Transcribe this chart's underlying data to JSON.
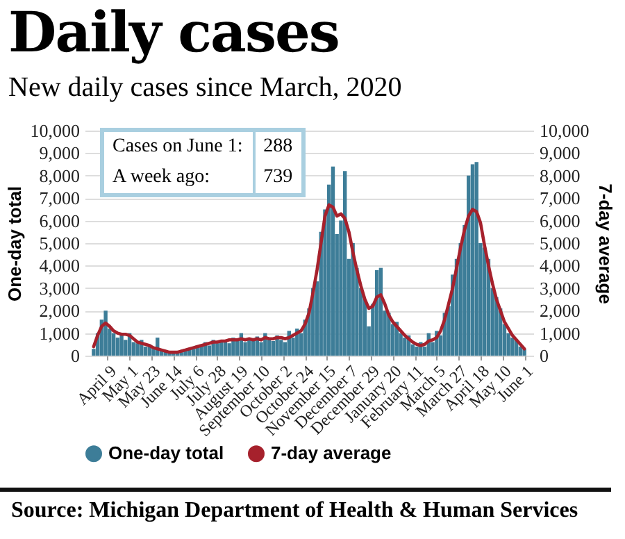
{
  "chart_data": {
    "type": "bar",
    "title": "Daily cases",
    "subtitle": "New daily cases since March, 2020",
    "ylabel": "One-day total",
    "y2label": "7-day average",
    "annotations": [
      "Cases on June 1:",
      "288",
      "A week ago:",
      "739",
      "Source:  Michigan Department of Health & Human Services"
    ],
    "x": [
      "2020-03-26",
      "2020-03-30",
      "2020-04-03",
      "2020-04-07",
      "2020-04-11",
      "2020-04-15",
      "2020-04-19",
      "2020-04-23",
      "2020-04-27",
      "2020-05-01",
      "2020-05-05",
      "2020-05-09",
      "2020-05-13",
      "2020-05-17",
      "2020-05-21",
      "2020-05-25",
      "2020-05-29",
      "2020-06-02",
      "2020-06-06",
      "2020-06-10",
      "2020-06-14",
      "2020-06-18",
      "2020-06-22",
      "2020-06-26",
      "2020-06-30",
      "2020-07-04",
      "2020-07-08",
      "2020-07-12",
      "2020-07-16",
      "2020-07-20",
      "2020-07-24",
      "2020-07-28",
      "2020-08-01",
      "2020-08-05",
      "2020-08-09",
      "2020-08-13",
      "2020-08-17",
      "2020-08-21",
      "2020-08-25",
      "2020-08-29",
      "2020-09-02",
      "2020-09-06",
      "2020-09-10",
      "2020-09-14",
      "2020-09-18",
      "2020-09-22",
      "2020-09-26",
      "2020-09-30",
      "2020-10-04",
      "2020-10-08",
      "2020-10-12",
      "2020-10-16",
      "2020-10-20",
      "2020-10-24",
      "2020-10-28",
      "2020-11-01",
      "2020-11-05",
      "2020-11-09",
      "2020-11-13",
      "2020-11-17",
      "2020-11-21",
      "2020-11-25",
      "2020-11-29",
      "2020-12-03",
      "2020-12-07",
      "2020-12-11",
      "2020-12-15",
      "2020-12-19",
      "2020-12-23",
      "2020-12-27",
      "2020-12-31",
      "2021-01-04",
      "2021-01-08",
      "2021-01-12",
      "2021-01-16",
      "2021-01-20",
      "2021-01-24",
      "2021-01-28",
      "2021-02-01",
      "2021-02-05",
      "2021-02-09",
      "2021-02-13",
      "2021-02-17",
      "2021-02-21",
      "2021-02-25",
      "2021-03-01",
      "2021-03-05",
      "2021-03-09",
      "2021-03-13",
      "2021-03-17",
      "2021-03-21",
      "2021-03-25",
      "2021-03-29",
      "2021-04-02",
      "2021-04-06",
      "2021-04-10",
      "2021-04-14",
      "2021-04-18",
      "2021-04-22",
      "2021-04-26",
      "2021-04-30",
      "2021-05-04",
      "2021-05-08",
      "2021-05-12",
      "2021-05-16",
      "2021-05-20",
      "2021-05-24",
      "2021-05-28",
      "2021-06-01"
    ],
    "series": [
      {
        "name": "One-day total",
        "color": "#3d7d98",
        "values": [
          300,
          1000,
          1600,
          2000,
          1200,
          1000,
          800,
          1000,
          700,
          1000,
          600,
          550,
          700,
          400,
          500,
          300,
          800,
          250,
          200,
          150,
          100,
          200,
          150,
          300,
          250,
          300,
          450,
          500,
          600,
          450,
          700,
          550,
          600,
          700,
          550,
          800,
          650,
          1000,
          600,
          800,
          650,
          850,
          600,
          1000,
          700,
          650,
          900,
          700,
          600,
          1100,
          800,
          1200,
          1000,
          1600,
          2100,
          3000,
          3300,
          5500,
          6500,
          7600,
          8400,
          5400,
          6000,
          8200,
          4300,
          5000,
          3900,
          3000,
          2500,
          1300,
          2300,
          3800,
          3900,
          2000,
          1900,
          1400,
          1500,
          1000,
          800,
          900,
          500,
          400,
          600,
          400,
          1000,
          600,
          1100,
          900,
          1900,
          2200,
          3600,
          4300,
          5000,
          5800,
          8000,
          8500,
          8600,
          5000,
          4800,
          4300,
          3000,
          2600,
          2100,
          1400,
          1000,
          800,
          700,
          400,
          288
        ]
      },
      {
        "name": "7-day average",
        "type": "line",
        "axis": "y2",
        "color": "#a6212c",
        "values": [
          400,
          900,
          1300,
          1450,
          1300,
          1100,
          1000,
          950,
          950,
          900,
          750,
          600,
          550,
          500,
          450,
          350,
          300,
          250,
          200,
          150,
          150,
          150,
          200,
          250,
          300,
          350,
          400,
          450,
          500,
          550,
          600,
          600,
          650,
          650,
          700,
          700,
          700,
          750,
          700,
          750,
          700,
          750,
          700,
          800,
          750,
          750,
          800,
          800,
          750,
          800,
          900,
          1000,
          1100,
          1400,
          1900,
          2800,
          3800,
          5000,
          6200,
          6700,
          6600,
          6200,
          6300,
          6100,
          5500,
          4600,
          3800,
          3100,
          2500,
          2100,
          2200,
          2600,
          2700,
          2300,
          1800,
          1500,
          1300,
          1100,
          900,
          750,
          600,
          500,
          450,
          500,
          650,
          700,
          800,
          1100,
          1600,
          2300,
          3000,
          3900,
          4800,
          5600,
          6200,
          6500,
          6400,
          5900,
          4900,
          4000,
          3200,
          2500,
          2000,
          1500,
          1200,
          900,
          700,
          500,
          300
        ]
      }
    ],
    "xlim": [
      "2020-03-24",
      "2021-06-03"
    ],
    "xticks": [
      {
        "value": "2020-04-09",
        "label": "April 9"
      },
      {
        "value": "2020-05-01",
        "label": "May 1"
      },
      {
        "value": "2020-05-23",
        "label": "May 23"
      },
      {
        "value": "2020-06-14",
        "label": "June 14"
      },
      {
        "value": "2020-07-06",
        "label": "July 6"
      },
      {
        "value": "2020-07-28",
        "label": "July 28"
      },
      {
        "value": "2020-08-19",
        "label": "August 19"
      },
      {
        "value": "2020-09-10",
        "label": "September 10"
      },
      {
        "value": "2020-10-02",
        "label": "October 2"
      },
      {
        "value": "2020-10-24",
        "label": "October 24"
      },
      {
        "value": "2020-11-15",
        "label": "November 15"
      },
      {
        "value": "2020-12-07",
        "label": "December 7"
      },
      {
        "value": "2020-12-29",
        "label": "December 29"
      },
      {
        "value": "2021-01-20",
        "label": "January 20"
      },
      {
        "value": "2021-02-11",
        "label": "February 11"
      },
      {
        "value": "2021-03-05",
        "label": "March 5"
      },
      {
        "value": "2021-03-27",
        "label": "March 27"
      },
      {
        "value": "2021-04-18",
        "label": "April 18"
      },
      {
        "value": "2021-05-10",
        "label": "May 10"
      },
      {
        "value": "2021-06-01",
        "label": "June 1"
      }
    ],
    "ylim": [
      0,
      10000
    ],
    "yticks": [
      0,
      {
        "value": 1000,
        "label": "1,000"
      },
      {
        "value": 2000,
        "label": "2,000"
      },
      {
        "value": 3000,
        "label": "3,000"
      },
      {
        "value": 4000,
        "label": "4,000"
      },
      {
        "value": 5000,
        "label": "5,000"
      },
      {
        "value": 6000,
        "label": "6,000"
      },
      {
        "value": 7000,
        "label": "7,000"
      },
      {
        "value": 8000,
        "label": "8,000"
      },
      {
        "value": 9000,
        "label": "9,000"
      },
      {
        "value": 10000,
        "label": "10,000"
      }
    ],
    "y2lim": [
      0,
      10000
    ],
    "y2ticks": [
      0,
      {
        "value": 1000,
        "label": "1,000"
      },
      {
        "value": 2000,
        "label": "2,000"
      },
      {
        "value": 3000,
        "label": "3,000"
      },
      {
        "value": 4000,
        "label": "4,000"
      },
      {
        "value": 5000,
        "label": "5,000"
      },
      {
        "value": 6000,
        "label": "6,000"
      },
      {
        "value": 7000,
        "label": "7,000"
      },
      {
        "value": 8000,
        "label": "8,000"
      },
      {
        "value": 9000,
        "label": "9,000"
      },
      {
        "value": 10000,
        "label": "10,000"
      }
    ],
    "grid": "y",
    "legend": "bottom",
    "line_style": "solid",
    "marker": "none"
  }
}
